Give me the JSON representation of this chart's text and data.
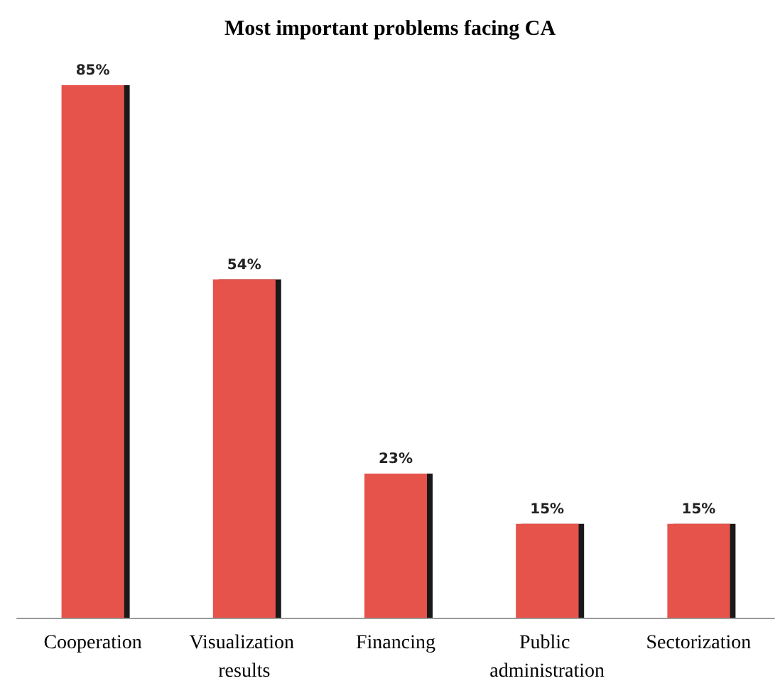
{
  "chart_data": {
    "type": "bar",
    "title": "Most important problems facing CA",
    "categories": [
      "Cooperation",
      "Visualization results",
      "Financing",
      "Public administration",
      "Sectorization"
    ],
    "values": [
      85,
      54,
      23,
      15,
      15
    ],
    "color": "#e5524c",
    "value_labels": [
      "85%",
      "54%",
      "23%",
      "15%",
      "15%"
    ]
  }
}
